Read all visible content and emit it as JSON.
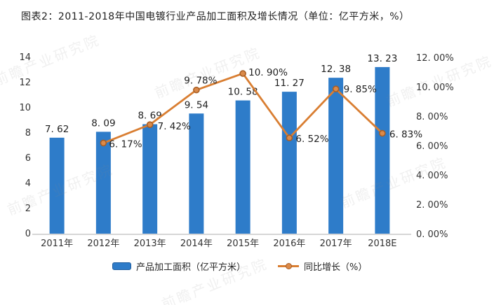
{
  "title": "图表2：2011-2018年中国电镀行业产品加工面积及增长情况（单位：亿平方米，%）",
  "watermark": {
    "text": "前瞻产业研究院"
  },
  "colors": {
    "bar": "#2E7CC9",
    "bar_border": "#1E5C9E",
    "line": "#D97E32",
    "marker_fill": "#DB8A4A",
    "marker_stroke": "#A85E24",
    "axis_line": "#C9C9C9",
    "label": "#1f1f1f",
    "tick": "#333333"
  },
  "chart_data": {
    "type": "bar+line",
    "title": "图表2：2011-2018年中国电镀行业产品加工面积及增长情况（单位：亿平方米，%）",
    "categories": [
      "2011年",
      "2012年",
      "2013年",
      "2014年",
      "2015年",
      "2016年",
      "2017年",
      "2018E"
    ],
    "series": [
      {
        "name": "产品加工面积（亿平方米）",
        "type": "bar",
        "axis": "left",
        "values": [
          7.62,
          8.09,
          8.69,
          9.54,
          10.58,
          11.27,
          12.38,
          13.23
        ],
        "labels": [
          "7. 62",
          "8. 09",
          "8. 69",
          "9. 54",
          "10. 58",
          "11. 27",
          "12. 38",
          "13. 23"
        ]
      },
      {
        "name": "同比增长（%）",
        "type": "line",
        "axis": "right",
        "values": [
          null,
          6.17,
          7.42,
          9.78,
          10.9,
          6.52,
          9.85,
          6.83
        ],
        "labels": [
          null,
          "6. 17%",
          "7. 42%",
          "9. 78%",
          "10. 90%",
          "6. 52%",
          "9. 85%",
          "6. 83%"
        ]
      }
    ],
    "left_axis": {
      "min": 0,
      "max": 14,
      "tick_values": [
        0,
        2,
        4,
        6,
        8,
        10,
        12,
        14
      ],
      "tick_labels": [
        "0",
        "2",
        "4",
        "6",
        "8",
        "10",
        "12",
        "14"
      ]
    },
    "right_axis": {
      "min": 0,
      "max": 12,
      "tick_values": [
        0,
        2,
        4,
        6,
        8,
        10,
        12
      ],
      "tick_labels": [
        "0. 00%",
        "2. 00%",
        "4. 00%",
        "6. 00%",
        "8. 00%",
        "10. 00%",
        "12. 00%"
      ]
    },
    "grid": false,
    "legend_position": "bottom"
  },
  "legend": {
    "items": [
      {
        "label": "产品加工面积（亿平方米）"
      },
      {
        "label": "同比增长（%）"
      }
    ]
  }
}
